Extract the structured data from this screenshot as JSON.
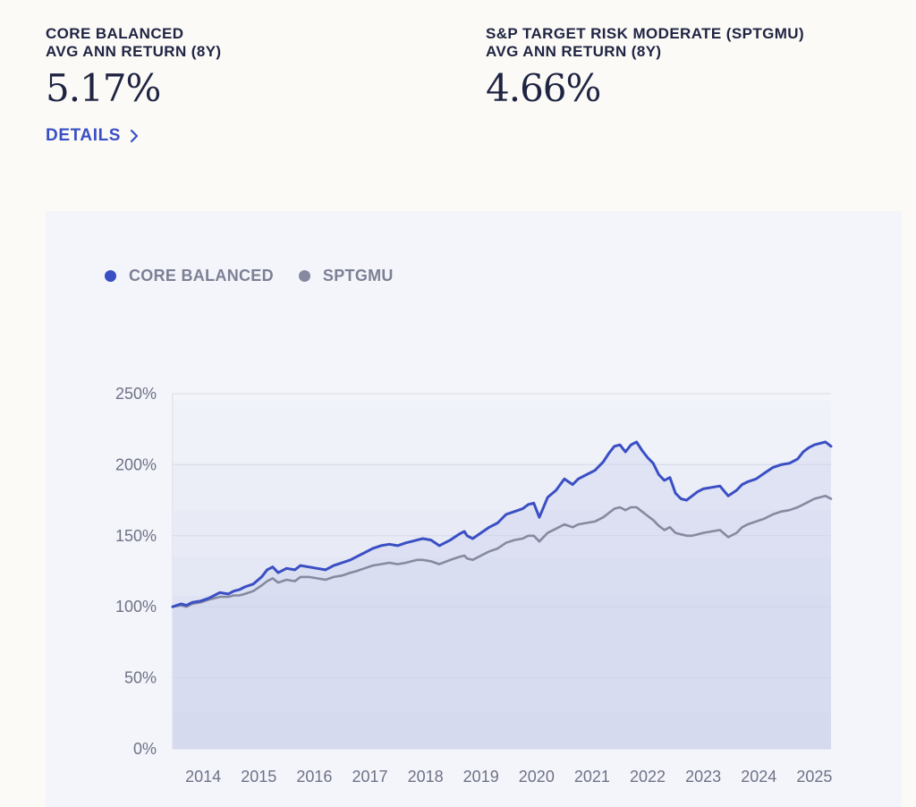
{
  "stats": {
    "left": {
      "label_line1": "CORE BALANCED",
      "label_line2": "AVG ANN RETURN (8Y)",
      "value": "5.17%"
    },
    "right": {
      "label_line1": "S&P TARGET RISK MODERATE (SPTGMU)",
      "label_line2": "AVG ANN RETURN (8Y)",
      "value": "4.66%"
    }
  },
  "details_link": {
    "label": "DETAILS"
  },
  "colors": {
    "accent": "#3a4fc4",
    "benchmark": "#858aa0",
    "grid": "#d9dbe6",
    "card": "#f4f5fb"
  },
  "chart_data": {
    "type": "line",
    "title": "",
    "xlabel": "",
    "ylabel": "",
    "ylim": [
      0,
      250
    ],
    "xlim": [
      2013.7,
      2025.55
    ],
    "yticks": [
      0,
      50,
      100,
      150,
      200,
      250
    ],
    "ytick_labels": [
      "0%",
      "50%",
      "100%",
      "150%",
      "200%",
      "250%"
    ],
    "xticks": [
      2014,
      2015,
      2016,
      2017,
      2018,
      2019,
      2020,
      2021,
      2022,
      2023,
      2024,
      2025
    ],
    "xtick_labels": [
      "2014",
      "2015",
      "2016",
      "2017",
      "2018",
      "2019",
      "2020",
      "2021",
      "2022",
      "2023",
      "2024",
      "2025"
    ],
    "grid": true,
    "legend_position": "top-left",
    "series": [
      {
        "name": "CORE BALANCED",
        "color": "#3a4fc4",
        "x": [
          2013.7,
          2013.85,
          2013.95,
          2014.05,
          2014.2,
          2014.35,
          2014.45,
          2014.55,
          2014.7,
          2014.8,
          2014.9,
          2015.0,
          2015.15,
          2015.3,
          2015.4,
          2015.5,
          2015.6,
          2015.75,
          2015.9,
          2016.0,
          2016.15,
          2016.3,
          2016.45,
          2016.6,
          2016.75,
          2016.9,
          2017.0,
          2017.15,
          2017.3,
          2017.45,
          2017.6,
          2017.75,
          2017.9,
          2018.0,
          2018.1,
          2018.2,
          2018.35,
          2018.5,
          2018.7,
          2018.85,
          2018.95,
          2019.0,
          2019.1,
          2019.25,
          2019.4,
          2019.55,
          2019.7,
          2019.85,
          2020.0,
          2020.1,
          2020.2,
          2020.3,
          2020.45,
          2020.6,
          2020.75,
          2020.9,
          2021.0,
          2021.15,
          2021.3,
          2021.45,
          2021.55,
          2021.65,
          2021.75,
          2021.85,
          2021.95,
          2022.05,
          2022.15,
          2022.25,
          2022.35,
          2022.45,
          2022.55,
          2022.65,
          2022.75,
          2022.85,
          2022.95,
          2023.05,
          2023.15,
          2023.25,
          2023.4,
          2023.55,
          2023.7,
          2023.85,
          2023.95,
          2024.05,
          2024.2,
          2024.35,
          2024.5,
          2024.65,
          2024.8,
          2024.95,
          2025.05,
          2025.15,
          2025.25,
          2025.35,
          2025.45,
          2025.55
        ],
        "values": [
          100,
          102,
          101,
          103,
          104,
          106,
          108,
          110,
          109,
          111,
          112,
          114,
          116,
          121,
          126,
          128,
          124,
          127,
          126,
          129,
          128,
          127,
          126,
          129,
          131,
          133,
          135,
          138,
          141,
          143,
          144,
          143,
          145,
          146,
          147,
          148,
          147,
          143,
          147,
          151,
          153,
          150,
          148,
          152,
          156,
          159,
          165,
          167,
          169,
          172,
          173,
          163,
          177,
          182,
          190,
          186,
          190,
          193,
          196,
          202,
          208,
          213,
          214,
          209,
          214,
          216,
          210,
          205,
          201,
          193,
          189,
          191,
          180,
          176,
          175,
          178,
          181,
          183,
          184,
          185,
          178,
          182,
          186,
          188,
          190,
          194,
          198,
          200,
          201,
          204,
          209,
          212,
          214,
          215,
          216,
          213
        ]
      },
      {
        "name": "SPTGMU",
        "color": "#858aa0",
        "x": [
          2013.7,
          2013.85,
          2013.95,
          2014.05,
          2014.2,
          2014.35,
          2014.45,
          2014.55,
          2014.7,
          2014.8,
          2014.9,
          2015.0,
          2015.15,
          2015.3,
          2015.4,
          2015.5,
          2015.6,
          2015.75,
          2015.9,
          2016.0,
          2016.15,
          2016.3,
          2016.45,
          2016.6,
          2016.75,
          2016.9,
          2017.0,
          2017.15,
          2017.3,
          2017.45,
          2017.6,
          2017.75,
          2017.9,
          2018.0,
          2018.1,
          2018.2,
          2018.35,
          2018.5,
          2018.7,
          2018.85,
          2018.95,
          2019.0,
          2019.1,
          2019.25,
          2019.4,
          2019.55,
          2019.7,
          2019.85,
          2020.0,
          2020.1,
          2020.2,
          2020.3,
          2020.45,
          2020.6,
          2020.75,
          2020.9,
          2021.0,
          2021.15,
          2021.3,
          2021.45,
          2021.55,
          2021.65,
          2021.75,
          2021.85,
          2021.95,
          2022.05,
          2022.15,
          2022.25,
          2022.35,
          2022.45,
          2022.55,
          2022.65,
          2022.75,
          2022.85,
          2022.95,
          2023.05,
          2023.15,
          2023.25,
          2023.4,
          2023.55,
          2023.7,
          2023.85,
          2023.95,
          2024.05,
          2024.2,
          2024.35,
          2024.5,
          2024.65,
          2024.8,
          2024.95,
          2025.05,
          2025.15,
          2025.25,
          2025.35,
          2025.45,
          2025.55
        ],
        "values": [
          100,
          101,
          100,
          102,
          103,
          105,
          106,
          107,
          107,
          108,
          108,
          109,
          111,
          115,
          118,
          120,
          117,
          119,
          118,
          121,
          121,
          120,
          119,
          121,
          122,
          124,
          125,
          127,
          129,
          130,
          131,
          130,
          131,
          132,
          133,
          133,
          132,
          130,
          133,
          135,
          136,
          134,
          133,
          136,
          139,
          141,
          145,
          147,
          148,
          150,
          150,
          146,
          152,
          155,
          158,
          156,
          158,
          159,
          160,
          163,
          166,
          169,
          170,
          168,
          170,
          170,
          167,
          164,
          161,
          157,
          154,
          156,
          152,
          151,
          150,
          150,
          151,
          152,
          153,
          154,
          149,
          152,
          156,
          158,
          160,
          162,
          165,
          167,
          168,
          170,
          172,
          174,
          176,
          177,
          178,
          176
        ]
      }
    ]
  }
}
